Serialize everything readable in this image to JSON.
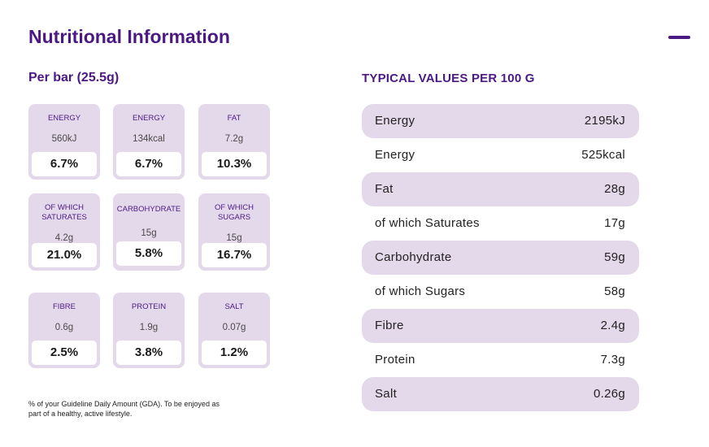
{
  "title": "Nutritional Information",
  "per_bar": {
    "heading": "Per bar (25.5g)",
    "cards": [
      {
        "label": "ENERGY",
        "amount": "560kJ",
        "percent": "6.7%"
      },
      {
        "label": "ENERGY",
        "amount": "134kcal",
        "percent": "6.7%"
      },
      {
        "label": "FAT",
        "amount": "7.2g",
        "percent": "10.3%"
      },
      {
        "label": "OF WHICH SATURATES",
        "amount": "4.2g",
        "percent": "21.0%"
      },
      {
        "label": "CARBOHYDRATE",
        "amount": "15g",
        "percent": "5.8%"
      },
      {
        "label": "OF WHICH SUGARS",
        "amount": "15g",
        "percent": "16.7%"
      },
      {
        "label": "FIBRE",
        "amount": "0.6g",
        "percent": "2.5%"
      },
      {
        "label": "PROTEIN",
        "amount": "1.9g",
        "percent": "3.8%"
      },
      {
        "label": "SALT",
        "amount": "0.07g",
        "percent": "1.2%"
      }
    ],
    "footnote": "% of your Guideline Daily Amount (GDA). To be enjoyed as part of a healthy, active lifestyle."
  },
  "per_100g": {
    "heading": "TYPICAL VALUES PER 100 G",
    "rows": [
      {
        "name": "Energy",
        "value": "2195kJ"
      },
      {
        "name": "Energy",
        "value": "525kcal"
      },
      {
        "name": "Fat",
        "value": "28g"
      },
      {
        "name": "of which Saturates",
        "value": "17g"
      },
      {
        "name": "Carbohydrate",
        "value": "59g"
      },
      {
        "name": "of which Sugars",
        "value": "58g"
      },
      {
        "name": "Fibre",
        "value": "2.4g"
      },
      {
        "name": "Protein",
        "value": "7.3g"
      },
      {
        "name": "Salt",
        "value": "0.26g"
      }
    ]
  },
  "colors": {
    "accent": "#4b1984",
    "row_shade": "#e4d9eb",
    "text": "#222222"
  },
  "icons": {
    "collapse": "minus-icon"
  }
}
